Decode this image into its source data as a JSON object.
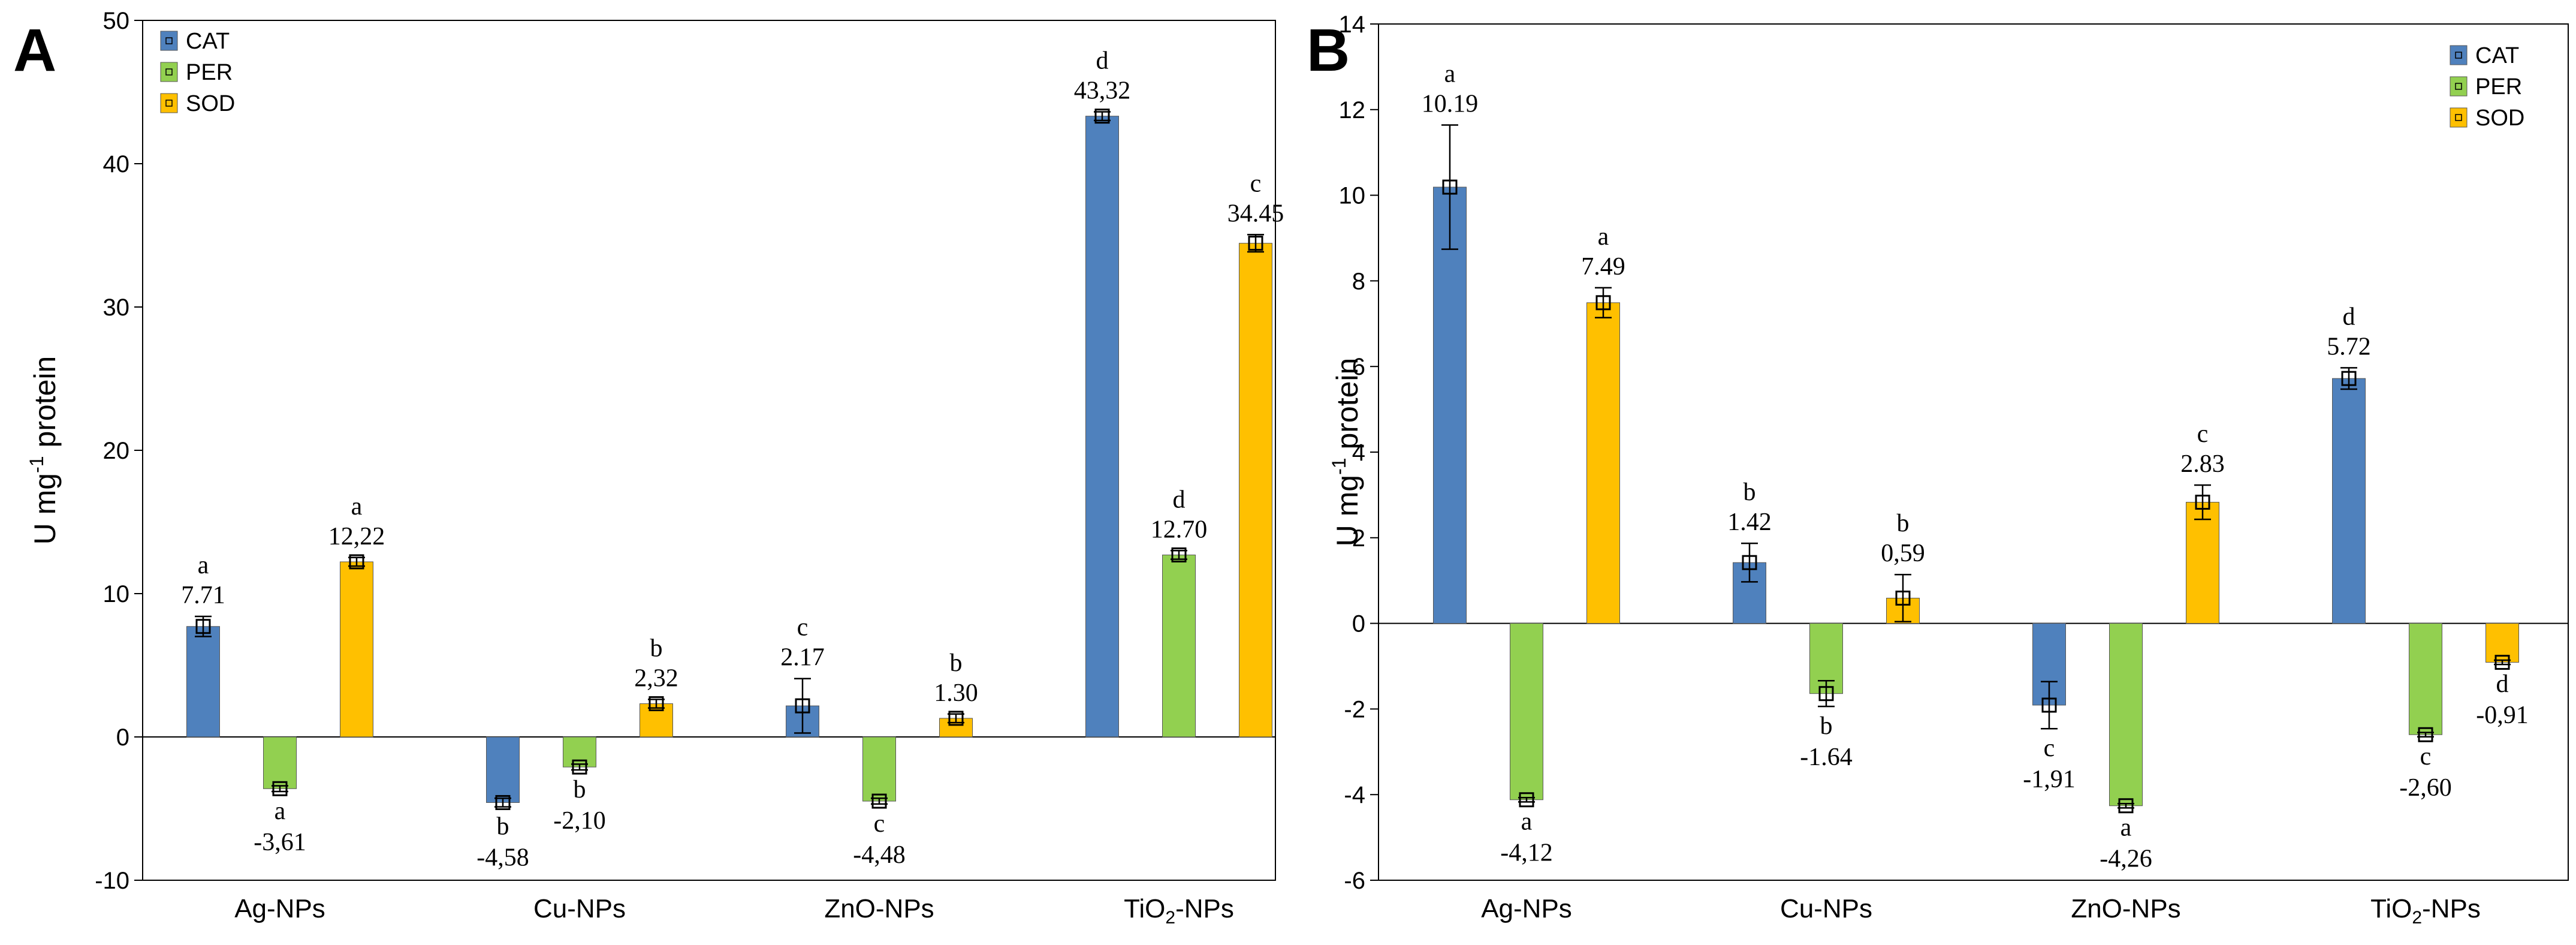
{
  "colors": {
    "CAT": "#4f81bd",
    "PER": "#92d050",
    "SOD": "#ffc000"
  },
  "chart_data": [
    {
      "panel": "A",
      "type": "bar",
      "ylabel": "U mg-1 protein",
      "ylabel_base": "U mg",
      "ylabel_sup": "-1",
      "ylabel_rest": " protein",
      "ylim": [
        -10,
        50
      ],
      "yticks": [
        "-10",
        "0",
        "10",
        "20",
        "30",
        "40",
        "50"
      ],
      "legend_position": "top-left",
      "categories": [
        {
          "base": "Ag-NPs",
          "sub": "",
          "rest": ""
        },
        {
          "base": "Cu-NPs",
          "sub": "",
          "rest": ""
        },
        {
          "base": "ZnO-NPs",
          "sub": "",
          "rest": ""
        },
        {
          "base": "TiO",
          "sub": "2",
          "rest": "-NPs"
        }
      ],
      "series": [
        {
          "name": "CAT",
          "values": [
            7.71,
            -4.58,
            2.17,
            43.32
          ],
          "errors": [
            0.7,
            0.3,
            1.9,
            0.3
          ],
          "labels": [
            "7.71",
            "-4,58",
            "2.17",
            "43,32"
          ],
          "letters": [
            "a",
            "b",
            "c",
            "d"
          ]
        },
        {
          "name": "PER",
          "values": [
            -3.61,
            -2.1,
            -4.48,
            12.7
          ],
          "errors": [
            0.2,
            0.2,
            0.2,
            0.3
          ],
          "labels": [
            "-3,61",
            "-2,10",
            "-4,48",
            "12.70"
          ],
          "letters": [
            "a",
            "b",
            "c",
            "d"
          ]
        },
        {
          "name": "SOD",
          "values": [
            12.22,
            2.32,
            1.3,
            34.45
          ],
          "errors": [
            0.3,
            0.3,
            0.3,
            0.6
          ],
          "labels": [
            "12,22",
            "2,32",
            "1.30",
            "34.45"
          ],
          "letters": [
            "a",
            "b",
            "b",
            "c"
          ]
        }
      ]
    },
    {
      "panel": "B",
      "type": "bar",
      "ylabel": "U mg-1 protein",
      "ylabel_base": "U mg",
      "ylabel_sup": "-1",
      "ylabel_rest": " protein",
      "ylim": [
        -6,
        14
      ],
      "yticks": [
        "-6",
        "-4",
        "-2",
        "0",
        "2",
        "4",
        "6",
        "8",
        "10",
        "12",
        "14"
      ],
      "legend_position": "top-right",
      "categories": [
        {
          "base": "Ag-NPs",
          "sub": "",
          "rest": ""
        },
        {
          "base": "Cu-NPs",
          "sub": "",
          "rest": ""
        },
        {
          "base": "ZnO-NPs",
          "sub": "",
          "rest": ""
        },
        {
          "base": "TiO",
          "sub": "2",
          "rest": "-NPs"
        }
      ],
      "series": [
        {
          "name": "CAT",
          "values": [
            10.19,
            1.42,
            -1.91,
            5.72
          ],
          "errors": [
            1.45,
            0.45,
            0.55,
            0.25
          ],
          "labels": [
            "10.19",
            "1.42",
            "-1,91",
            "5.72"
          ],
          "letters": [
            "a",
            "b",
            "c",
            "d"
          ]
        },
        {
          "name": "PER",
          "values": [
            -4.12,
            -1.64,
            -4.26,
            -2.6
          ],
          "errors": [
            0.05,
            0.3,
            0.05,
            0.05
          ],
          "labels": [
            "-4,12",
            "-1.64",
            "-4,26",
            "-2,60"
          ],
          "letters": [
            "a",
            "b",
            "a",
            "c"
          ]
        },
        {
          "name": "SOD",
          "values": [
            7.49,
            0.59,
            2.83,
            -0.91
          ],
          "errors": [
            0.35,
            0.55,
            0.4,
            0.05
          ],
          "labels": [
            "7.49",
            "0,59",
            "2.83",
            "-0,91"
          ],
          "letters": [
            "a",
            "b",
            "c",
            "d"
          ]
        }
      ]
    }
  ]
}
